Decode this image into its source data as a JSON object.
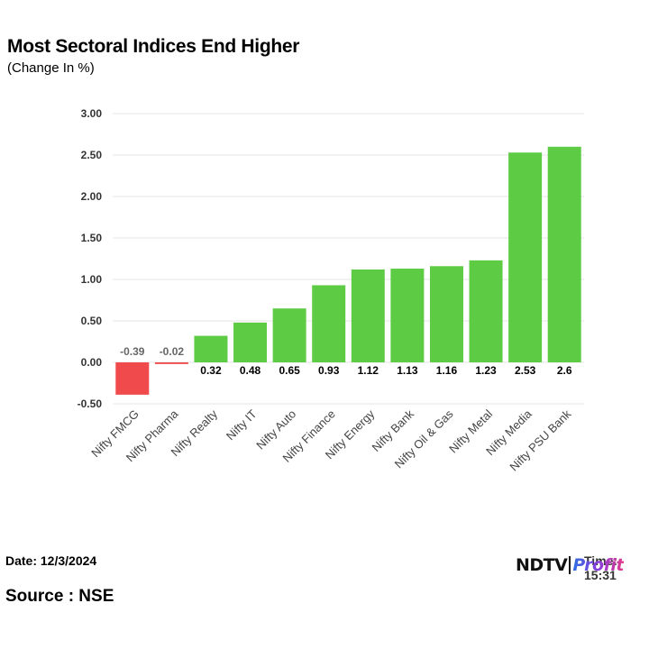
{
  "chart_data": {
    "type": "bar",
    "title": "Most Sectoral Indices End Higher",
    "subtitle": "(Change In %)",
    "xlabel": "",
    "ylabel": "",
    "categories": [
      "Nifty FMCG",
      "Nifty Pharma",
      "Nifty Realty",
      "Nifty IT",
      "Nifty Auto",
      "Nifty Finance",
      "Nifty Energy",
      "Nifty Bank",
      "Nifty Oil & Gas",
      "Nifty Metal",
      "Nifty Media",
      "Nifty PSU Bank"
    ],
    "values": [
      -0.39,
      -0.02,
      0.32,
      0.48,
      0.65,
      0.93,
      1.12,
      1.13,
      1.16,
      1.23,
      2.53,
      2.6
    ],
    "data_labels": [
      "-0.39",
      "-0.02",
      "0.32",
      "0.48",
      "0.65",
      "0.93",
      "1.12",
      "1.13",
      "1.16",
      "1.23",
      "2.53",
      "2.6"
    ],
    "yticks": [
      "-0.50",
      "0.00",
      "0.50",
      "1.00",
      "1.50",
      "2.00",
      "2.50",
      "3.00"
    ],
    "ylim": [
      -0.5,
      3.0
    ],
    "grid": true,
    "colors": {
      "positive": "#5ecb45",
      "negative": "#f04a4c",
      "grid": "#e6e6e6",
      "negative_label": "#666666"
    }
  },
  "footer": {
    "date": "Date: 12/3/2024",
    "time": "Time: 15:31",
    "source": "Source : NSE",
    "logo_ndtv": "NDTV",
    "logo_profit": "Profit"
  }
}
